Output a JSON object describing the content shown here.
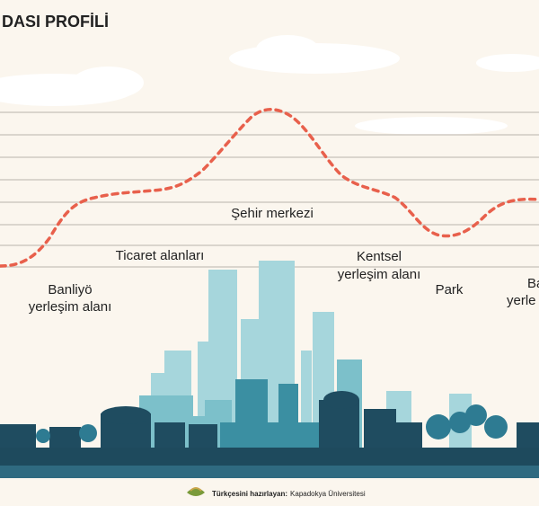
{
  "header": {
    "title": "DASI PROFİLİ"
  },
  "labels": {
    "city_center": "Şehir merkezi",
    "commercial": "Ticaret alanları",
    "suburban_left": [
      "Banliyö",
      "yerleşim alanı"
    ],
    "urban_residential": [
      "Kentsel",
      "yerleşim alanı"
    ],
    "park": "Park",
    "suburban_right": [
      "Ba",
      "yerle"
    ]
  },
  "footer": {
    "prefix": "Türkçesini hazırlayan:",
    "org": "Kapadokya Üniversitesi"
  }
}
